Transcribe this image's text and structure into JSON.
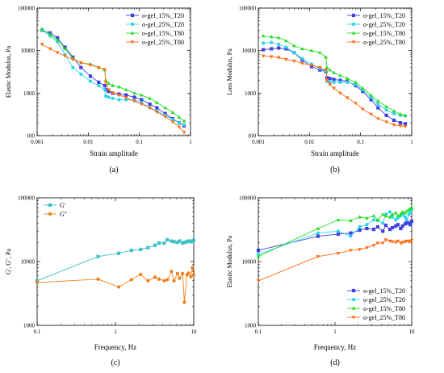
{
  "chart_data": [
    {
      "id": "a",
      "panel_label": "(a)",
      "type": "line",
      "xlabel": "Strain amplitude",
      "ylabel": "Elastic Modulus, Pa",
      "xscale": "log",
      "yscale": "log",
      "xlim": [
        0.001,
        1
      ],
      "ylim": [
        100,
        100000
      ],
      "x_ticks": [
        0.001,
        0.01,
        0.1,
        1
      ],
      "x_tick_labels": [
        "0.001",
        "0.01",
        "0.1",
        "1"
      ],
      "y_ticks": [
        100,
        1000,
        10000,
        100000
      ],
      "y_tick_labels": [
        "100",
        "1000",
        "10000",
        "100000"
      ],
      "legend_position": "top-right",
      "series": [
        {
          "name": "o-gel_15%_T20",
          "color": "#4040e0",
          "marker": "square",
          "x": [
            0.00125,
            0.0018,
            0.0025,
            0.0035,
            0.005,
            0.0072,
            0.011,
            0.016,
            0.021,
            0.022,
            0.025,
            0.03,
            0.04,
            0.055,
            0.08,
            0.11,
            0.16,
            0.22,
            0.32,
            0.45,
            0.6,
            0.75
          ],
          "y": [
            30000,
            26000,
            20000,
            12000,
            7000,
            4000,
            2500,
            1800,
            1500,
            1200,
            1100,
            1000,
            950,
            900,
            800,
            700,
            550,
            450,
            330,
            250,
            200,
            170
          ]
        },
        {
          "name": "o-gel_25%_T20",
          "color": "#2bd4e8",
          "marker": "circle",
          "x": [
            0.00125,
            0.0018,
            0.0025,
            0.0035,
            0.005,
            0.0072,
            0.011,
            0.016,
            0.021,
            0.022,
            0.025,
            0.03,
            0.04,
            0.055,
            0.08,
            0.11,
            0.16,
            0.22,
            0.32,
            0.45,
            0.6,
            0.75
          ],
          "y": [
            30000,
            22000,
            16000,
            8000,
            4000,
            2800,
            1900,
            1500,
            1200,
            850,
            800,
            750,
            700,
            700,
            680,
            600,
            450,
            380,
            300,
            240,
            200,
            180
          ]
        },
        {
          "name": "o-gel_15%_T80",
          "color": "#22dd22",
          "marker": "triangle-up",
          "x": [
            0.00125,
            0.0018,
            0.0025,
            0.0035,
            0.005,
            0.0072,
            0.011,
            0.016,
            0.021,
            0.022,
            0.025,
            0.03,
            0.04,
            0.055,
            0.08,
            0.11,
            0.16,
            0.22,
            0.32,
            0.45,
            0.6,
            0.75
          ],
          "y": [
            32000,
            24000,
            18000,
            11000,
            6500,
            5200,
            4800,
            4000,
            3500,
            2000,
            1700,
            1500,
            1400,
            1200,
            1000,
            900,
            750,
            600,
            450,
            350,
            270,
            220
          ]
        },
        {
          "name": "o-gel_25%_T80",
          "color": "#ff6a13",
          "marker": "triangle-down",
          "x": [
            0.00125,
            0.0018,
            0.0025,
            0.0035,
            0.005,
            0.0072,
            0.011,
            0.016,
            0.021,
            0.022,
            0.025,
            0.03,
            0.04,
            0.055,
            0.08,
            0.11,
            0.16,
            0.22,
            0.32,
            0.45,
            0.6,
            0.75
          ],
          "y": [
            14000,
            11000,
            9000,
            7500,
            6200,
            5200,
            4600,
            4000,
            3600,
            1800,
            1200,
            1000,
            900,
            780,
            650,
            550,
            450,
            360,
            280,
            210,
            160,
            120
          ]
        }
      ]
    },
    {
      "id": "b",
      "panel_label": "(b)",
      "type": "line",
      "xlabel": "Strain amplitude",
      "ylabel": "Loss Modulus, Pa",
      "xscale": "log",
      "yscale": "log",
      "xlim": [
        0.001,
        1
      ],
      "ylim": [
        100,
        100000
      ],
      "x_ticks": [
        0.001,
        0.01,
        0.1,
        1
      ],
      "x_tick_labels": [
        "0.001",
        "0.01",
        "0.1",
        "1"
      ],
      "y_ticks": [
        100,
        1000,
        10000,
        100000
      ],
      "y_tick_labels": [
        "100",
        "1000",
        "10000",
        "100000"
      ],
      "legend_position": "top-right",
      "series": [
        {
          "name": "o-gel_15%_T20",
          "color": "#4040e0",
          "marker": "square",
          "x": [
            0.00125,
            0.0018,
            0.0025,
            0.0035,
            0.005,
            0.0072,
            0.011,
            0.016,
            0.021,
            0.022,
            0.025,
            0.03,
            0.04,
            0.055,
            0.08,
            0.11,
            0.16,
            0.22,
            0.32,
            0.45,
            0.6,
            0.75
          ],
          "y": [
            10500,
            11000,
            11500,
            11000,
            9000,
            6000,
            4200,
            3500,
            3200,
            2300,
            2200,
            2100,
            2000,
            1900,
            1500,
            1100,
            700,
            450,
            300,
            230,
            200,
            190
          ]
        },
        {
          "name": "o-gel_25%_T20",
          "color": "#2bd4e8",
          "marker": "circle",
          "x": [
            0.00125,
            0.0018,
            0.0025,
            0.0035,
            0.005,
            0.0072,
            0.011,
            0.016,
            0.021,
            0.022,
            0.025,
            0.03,
            0.04,
            0.055,
            0.08,
            0.11,
            0.16,
            0.22,
            0.32,
            0.45,
            0.6,
            0.75
          ],
          "y": [
            15000,
            15500,
            14000,
            12000,
            9000,
            6500,
            4800,
            3800,
            3300,
            1900,
            1800,
            1800,
            1800,
            1800,
            1600,
            1200,
            800,
            550,
            400,
            330,
            300,
            290
          ]
        },
        {
          "name": "o-gel_15%_T80",
          "color": "#22dd22",
          "marker": "triangle-up",
          "x": [
            0.00125,
            0.0018,
            0.0025,
            0.0035,
            0.005,
            0.0072,
            0.011,
            0.016,
            0.021,
            0.022,
            0.025,
            0.03,
            0.04,
            0.055,
            0.08,
            0.11,
            0.16,
            0.22,
            0.32,
            0.45,
            0.6,
            0.75
          ],
          "y": [
            22000,
            21000,
            20000,
            17000,
            13000,
            11000,
            10000,
            9000,
            7000,
            4000,
            3500,
            3000,
            2600,
            2200,
            1800,
            1300,
            900,
            650,
            480,
            380,
            320,
            300
          ]
        },
        {
          "name": "o-gel_25%_T80",
          "color": "#ff6a13",
          "marker": "triangle-down",
          "x": [
            0.00125,
            0.0018,
            0.0025,
            0.0035,
            0.005,
            0.0072,
            0.011,
            0.016,
            0.021,
            0.022,
            0.025,
            0.03,
            0.04,
            0.055,
            0.08,
            0.11,
            0.16,
            0.22,
            0.32,
            0.45,
            0.6,
            0.75
          ],
          "y": [
            7500,
            7200,
            6800,
            6200,
            5700,
            5000,
            4500,
            4000,
            3500,
            2000,
            1600,
            1300,
            1000,
            780,
            580,
            420,
            320,
            250,
            210,
            180,
            170,
            165
          ]
        }
      ]
    },
    {
      "id": "c",
      "panel_label": "(c)",
      "type": "line",
      "xlabel": "Frequency, Hz",
      "ylabel": "G', G'', Pa",
      "xscale": "log",
      "yscale": "log",
      "xlim": [
        0.1,
        10
      ],
      "ylim": [
        1000,
        100000
      ],
      "x_ticks": [
        0.1,
        1,
        10
      ],
      "x_tick_labels": [
        "0.1",
        "1",
        "10"
      ],
      "y_ticks": [
        1000,
        10000,
        100000
      ],
      "y_tick_labels": [
        "1000",
        "10000",
        "100000"
      ],
      "legend_position": "top-left",
      "series": [
        {
          "name": "G'",
          "color": "#3cc1c8",
          "marker": "square",
          "x": [
            0.1,
            0.6,
            1.1,
            1.6,
            2.1,
            2.6,
            3.2,
            3.6,
            4.2,
            4.6,
            5.2,
            5.6,
            6.2,
            6.6,
            7.2,
            7.6,
            8.2,
            8.6,
            9.2,
            9.6,
            10
          ],
          "y": [
            5000,
            12000,
            13500,
            15000,
            15500,
            16500,
            18000,
            19500,
            19500,
            22000,
            21000,
            20500,
            20000,
            21000,
            19500,
            20000,
            20500,
            21000,
            20500,
            21000,
            21500
          ]
        },
        {
          "name": "G''",
          "color": "#f07f18",
          "marker": "circle",
          "x": [
            0.1,
            0.6,
            1.1,
            1.6,
            2.1,
            2.6,
            3.2,
            3.6,
            4.2,
            4.6,
            5.2,
            5.6,
            6.2,
            6.6,
            7.2,
            7.6,
            8.2,
            8.6,
            9.2,
            9.6,
            10
          ],
          "y": [
            4700,
            5300,
            4000,
            5200,
            6300,
            5000,
            5700,
            5300,
            5000,
            5200,
            7000,
            5000,
            6500,
            5500,
            6500,
            2300,
            6200,
            6600,
            5800,
            8000,
            6200
          ]
        }
      ]
    },
    {
      "id": "d",
      "panel_label": "(d)",
      "type": "line",
      "xlabel": "Frequency, Hz",
      "ylabel": "Elastic Modulus, Pa",
      "xscale": "log",
      "yscale": "log",
      "xlim": [
        0.1,
        10
      ],
      "ylim": [
        1000,
        100000
      ],
      "x_ticks": [
        0.1,
        1,
        10
      ],
      "x_tick_labels": [
        "0.1",
        "1",
        "10"
      ],
      "y_ticks": [
        1000,
        10000,
        100000
      ],
      "y_tick_labels": [
        "1000",
        "10000",
        "100000"
      ],
      "legend_position": "bottom-right",
      "series": [
        {
          "name": "o-gel_15%_T20",
          "color": "#4040e0",
          "marker": "square",
          "x": [
            0.1,
            0.6,
            1.1,
            1.6,
            2.1,
            2.6,
            3.2,
            3.6,
            4.2,
            4.6,
            5.2,
            5.6,
            6.2,
            6.6,
            7.2,
            7.6,
            8.2,
            8.6,
            9.2,
            9.6,
            10
          ],
          "y": [
            15000,
            25000,
            27000,
            28000,
            31000,
            33000,
            32000,
            35000,
            30000,
            37000,
            32000,
            34000,
            36000,
            38000,
            33000,
            36000,
            39000,
            41000,
            40000,
            38000,
            43000
          ]
        },
        {
          "name": "o-gel_25%_T20",
          "color": "#2bd4e8",
          "marker": "circle",
          "x": [
            0.1,
            0.6,
            1.1,
            1.6,
            2.1,
            2.6,
            3.2,
            3.6,
            4.2,
            4.6,
            5.2,
            5.6,
            6.2,
            6.6,
            7.2,
            7.6,
            8.2,
            8.6,
            9.2,
            9.6,
            10
          ],
          "y": [
            13000,
            28000,
            30000,
            25000,
            35000,
            38000,
            45000,
            44000,
            40000,
            55000,
            60000,
            50000,
            45000,
            48000,
            52000,
            55000,
            50000,
            45000,
            55000,
            60000,
            65000
          ]
        },
        {
          "name": "o-gel_15%_T80",
          "color": "#22dd22",
          "marker": "triangle-up",
          "x": [
            0.1,
            0.6,
            1.1,
            1.6,
            2.1,
            2.6,
            3.2,
            3.6,
            4.2,
            4.6,
            5.2,
            5.6,
            6.2,
            6.6,
            7.2,
            7.6,
            8.2,
            8.6,
            9.2,
            9.6,
            10
          ],
          "y": [
            12000,
            33000,
            45000,
            44000,
            50000,
            48000,
            52000,
            45000,
            55000,
            52000,
            50000,
            55000,
            58000,
            52000,
            56000,
            60000,
            58000,
            62000,
            65000,
            68000,
            70000
          ]
        },
        {
          "name": "o-gel_25%_T80",
          "color": "#ff6a13",
          "marker": "triangle-down",
          "x": [
            0.1,
            0.6,
            1.1,
            1.6,
            2.1,
            2.6,
            3.2,
            3.6,
            4.2,
            4.6,
            5.2,
            5.6,
            6.2,
            6.6,
            7.2,
            7.6,
            8.2,
            8.6,
            9.2,
            9.6,
            10
          ],
          "y": [
            5000,
            12000,
            13500,
            15000,
            15500,
            16500,
            18000,
            19500,
            19500,
            22000,
            21000,
            20500,
            20000,
            21000,
            19500,
            20000,
            20500,
            21000,
            20500,
            21000,
            21500
          ]
        }
      ]
    }
  ]
}
